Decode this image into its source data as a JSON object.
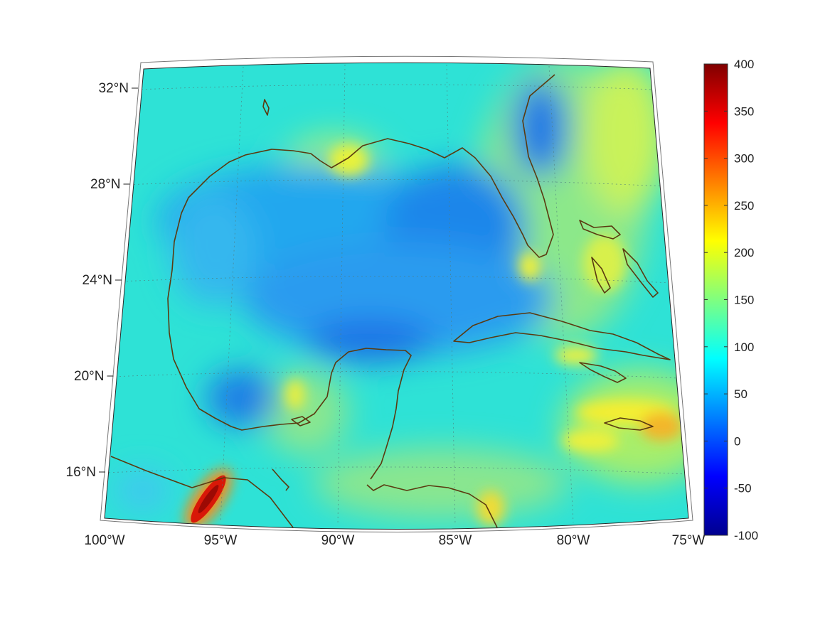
{
  "map": {
    "projection": "lambert-conformal-conic",
    "lat_range": [
      14.5,
      32.5
    ],
    "lon_range": [
      -100,
      -75
    ],
    "grid": true,
    "coastline_color": "#5a3a10",
    "latitude_labels": [
      {
        "value": 32,
        "text": "32°N"
      },
      {
        "value": 28,
        "text": "28°N"
      },
      {
        "value": 24,
        "text": "24°N"
      },
      {
        "value": 20,
        "text": "20°N"
      },
      {
        "value": 16,
        "text": "16°N"
      }
    ],
    "longitude_labels": [
      {
        "value": -100,
        "text": "100°W"
      },
      {
        "value": -95,
        "text": "95°W"
      },
      {
        "value": -90,
        "text": "90°W"
      },
      {
        "value": -85,
        "text": "85°W"
      },
      {
        "value": -80,
        "text": "80°W"
      },
      {
        "value": -75,
        "text": "75°W"
      }
    ]
  },
  "colorbar": {
    "colormap": "jet",
    "min": -100,
    "max": 400,
    "ticks": [
      {
        "value": 400,
        "text": "400"
      },
      {
        "value": 350,
        "text": "350"
      },
      {
        "value": 300,
        "text": "300"
      },
      {
        "value": 250,
        "text": "250"
      },
      {
        "value": 200,
        "text": "200"
      },
      {
        "value": 150,
        "text": "150"
      },
      {
        "value": 100,
        "text": "100"
      },
      {
        "value": 50,
        "text": "50"
      },
      {
        "value": 0,
        "text": "0"
      },
      {
        "value": -50,
        "text": "-50"
      },
      {
        "value": -100,
        "text": "-100"
      }
    ]
  }
}
